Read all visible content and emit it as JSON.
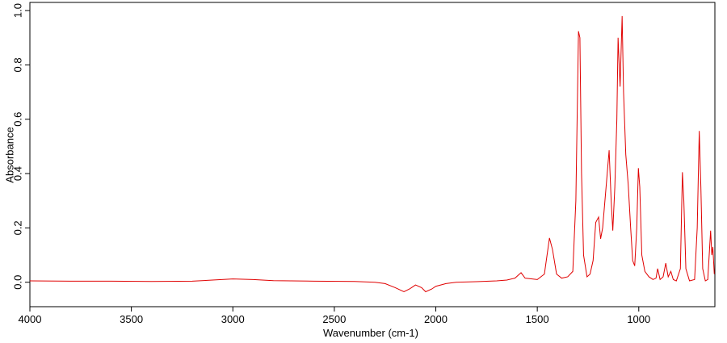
{
  "chart_data": {
    "type": "line",
    "xlabel": "Wavenumber (cm-1)",
    "ylabel": "Absorbance",
    "xlim": [
      4000,
      625
    ],
    "ylim": [
      -0.09,
      1.03
    ],
    "xticks": [
      4000,
      3500,
      3000,
      2500,
      2000,
      1500,
      1000
    ],
    "yticks": [
      {
        "value": 0,
        "label": "0.0"
      },
      {
        "value": 0.2,
        "label": "0.2"
      },
      {
        "value": 0.4,
        "label": "0.4"
      },
      {
        "value": 0.6,
        "label": "0.6"
      },
      {
        "value": 0.8,
        "label": "0.8"
      },
      {
        "value": 1,
        "label": "1.0"
      }
    ],
    "color": "#e00000",
    "x": [
      4000,
      3800,
      3600,
      3400,
      3200,
      3100,
      3000,
      2900,
      2800,
      2600,
      2400,
      2300,
      2250,
      2200,
      2157,
      2130,
      2100,
      2070,
      2050,
      2020,
      2000,
      1950,
      1900,
      1800,
      1700,
      1650,
      1610,
      1580,
      1560,
      1500,
      1465,
      1440,
      1425,
      1405,
      1380,
      1350,
      1325,
      1310,
      1297,
      1290,
      1282,
      1272,
      1255,
      1240,
      1225,
      1212,
      1198,
      1188,
      1178,
      1160,
      1146,
      1136,
      1128,
      1118,
      1108,
      1102,
      1092,
      1082,
      1075,
      1064,
      1052,
      1040,
      1030,
      1020,
      1010,
      1002,
      995,
      985,
      970,
      950,
      930,
      915,
      907,
      895,
      880,
      867,
      855,
      842,
      830,
      815,
      795,
      785,
      778,
      768,
      750,
      725,
      712,
      702,
      694,
      685,
      672,
      660,
      646,
      640,
      635,
      628
    ],
    "values": [
      0.005,
      0.004,
      0.004,
      0.003,
      0.004,
      0.008,
      0.012,
      0.01,
      0.006,
      0.004,
      0.003,
      0.0,
      -0.005,
      -0.02,
      -0.035,
      -0.025,
      -0.01,
      -0.02,
      -0.035,
      -0.025,
      -0.015,
      -0.005,
      0.0,
      0.002,
      0.005,
      0.008,
      0.015,
      0.035,
      0.015,
      0.01,
      0.03,
      0.163,
      0.12,
      0.03,
      0.015,
      0.02,
      0.04,
      0.3,
      0.924,
      0.9,
      0.4,
      0.1,
      0.02,
      0.03,
      0.08,
      0.22,
      0.24,
      0.16,
      0.2,
      0.36,
      0.486,
      0.3,
      0.19,
      0.35,
      0.6,
      0.9,
      0.72,
      0.98,
      0.7,
      0.47,
      0.36,
      0.2,
      0.08,
      0.06,
      0.2,
      0.42,
      0.35,
      0.1,
      0.04,
      0.02,
      0.01,
      0.015,
      0.05,
      0.01,
      0.02,
      0.07,
      0.02,
      0.04,
      0.01,
      0.005,
      0.05,
      0.405,
      0.3,
      0.05,
      0.005,
      0.01,
      0.2,
      0.557,
      0.35,
      0.05,
      0.005,
      0.01,
      0.19,
      0.1,
      0.13,
      0.03
    ]
  }
}
